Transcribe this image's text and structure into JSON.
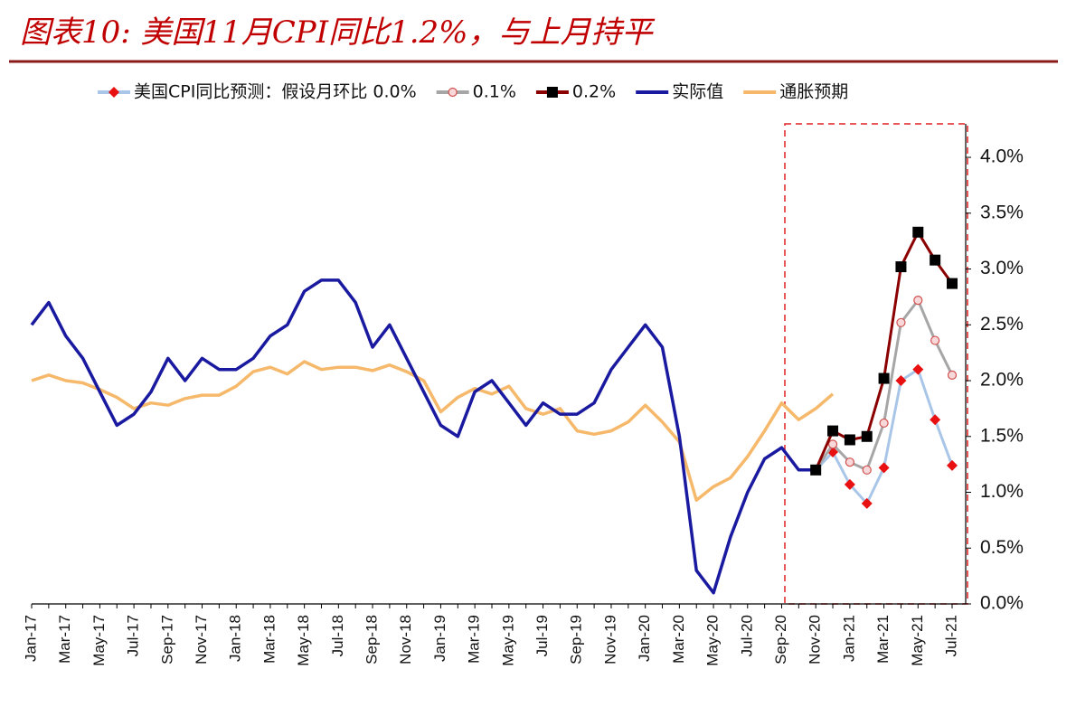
{
  "chart_data": {
    "type": "line",
    "title": "图表10: 美国11月CPI同比1.2%，与上月持平",
    "categories": [
      "Jan-17",
      null,
      "Mar-17",
      null,
      "May-17",
      null,
      "Jul-17",
      null,
      "Sep-17",
      null,
      "Nov-17",
      null,
      "Jan-18",
      null,
      "Mar-18",
      null,
      "May-18",
      null,
      "Jul-18",
      null,
      "Sep-18",
      null,
      "Nov-18",
      null,
      "Jan-19",
      null,
      "Mar-19",
      null,
      "May-19",
      null,
      "Jul-19",
      null,
      "Sep-19",
      null,
      "Nov-19",
      null,
      "Jan-20",
      null,
      "Mar-20",
      null,
      "May-20",
      null,
      "Jul-20",
      null,
      "Sep-20",
      null,
      "Nov-20",
      null,
      "Jan-21",
      null,
      "Mar-21",
      null,
      "May-21",
      null,
      "Jul-21"
    ],
    "series": [
      {
        "name": "美国CPI同比预测：假设月环比 0.0%",
        "color": "#a9c6e8",
        "marker": "diamond",
        "marker_color": "#e81010",
        "values": [
          null,
          null,
          null,
          null,
          null,
          null,
          null,
          null,
          null,
          null,
          null,
          null,
          null,
          null,
          null,
          null,
          null,
          null,
          null,
          null,
          null,
          null,
          null,
          null,
          null,
          null,
          null,
          null,
          null,
          null,
          null,
          null,
          null,
          null,
          null,
          null,
          null,
          null,
          null,
          null,
          null,
          null,
          null,
          null,
          null,
          null,
          1.2,
          1.36,
          1.07,
          0.9,
          1.22,
          2.0,
          2.1,
          1.65,
          1.24
        ]
      },
      {
        "name": "0.1%",
        "color": "#a6a6a6",
        "marker": "circle",
        "marker_color": "#e8a0a0",
        "values": [
          null,
          null,
          null,
          null,
          null,
          null,
          null,
          null,
          null,
          null,
          null,
          null,
          null,
          null,
          null,
          null,
          null,
          null,
          null,
          null,
          null,
          null,
          null,
          null,
          null,
          null,
          null,
          null,
          null,
          null,
          null,
          null,
          null,
          null,
          null,
          null,
          null,
          null,
          null,
          null,
          null,
          null,
          null,
          null,
          null,
          null,
          1.2,
          1.43,
          1.27,
          1.2,
          1.62,
          2.52,
          2.72,
          2.36,
          2.05
        ]
      },
      {
        "name": "0.2%",
        "color": "#8b0000",
        "marker": "square",
        "marker_color": "#000000",
        "values": [
          null,
          null,
          null,
          null,
          null,
          null,
          null,
          null,
          null,
          null,
          null,
          null,
          null,
          null,
          null,
          null,
          null,
          null,
          null,
          null,
          null,
          null,
          null,
          null,
          null,
          null,
          null,
          null,
          null,
          null,
          null,
          null,
          null,
          null,
          null,
          null,
          null,
          null,
          null,
          null,
          null,
          null,
          null,
          null,
          null,
          null,
          1.2,
          1.55,
          1.47,
          1.5,
          2.02,
          3.02,
          3.33,
          3.08,
          2.87
        ]
      },
      {
        "name": "实际值",
        "color": "#1a1aa0",
        "values": [
          2.5,
          2.7,
          2.4,
          2.2,
          1.9,
          1.6,
          1.7,
          1.9,
          2.2,
          2.0,
          2.2,
          2.1,
          2.1,
          2.2,
          2.4,
          2.5,
          2.8,
          2.9,
          2.9,
          2.7,
          2.3,
          2.5,
          2.2,
          1.9,
          1.6,
          1.5,
          1.9,
          2.0,
          1.8,
          1.6,
          1.8,
          1.7,
          1.7,
          1.8,
          2.1,
          2.3,
          2.5,
          2.3,
          1.5,
          0.3,
          0.1,
          0.6,
          1.0,
          1.3,
          1.4,
          1.2,
          1.2,
          null,
          null,
          null,
          null,
          null,
          null,
          null,
          null
        ]
      },
      {
        "name": "通胀预期",
        "color": "#f6b96b",
        "values": [
          2.0,
          2.05,
          2.0,
          1.98,
          1.92,
          1.85,
          1.75,
          1.8,
          1.78,
          1.84,
          1.87,
          1.87,
          1.95,
          2.08,
          2.12,
          2.06,
          2.17,
          2.1,
          2.12,
          2.12,
          2.09,
          2.14,
          2.08,
          2.0,
          1.72,
          1.85,
          1.93,
          1.88,
          1.95,
          1.75,
          1.7,
          1.75,
          1.55,
          1.52,
          1.55,
          1.63,
          1.78,
          1.63,
          1.45,
          0.93,
          1.05,
          1.13,
          1.32,
          1.55,
          1.8,
          1.65,
          1.75,
          1.88,
          null,
          null,
          null,
          null,
          null,
          null,
          null
        ]
      }
    ],
    "ylim": [
      0,
      4.3
    ],
    "yticks": [
      {
        "value": 0,
        "label": "0.0%"
      },
      {
        "value": 0.5,
        "label": "0.5%"
      },
      {
        "value": 1,
        "label": "1.0%"
      },
      {
        "value": 1.5,
        "label": "1.5%"
      },
      {
        "value": 2,
        "label": "2.0%"
      },
      {
        "value": 2.5,
        "label": "2.5%"
      },
      {
        "value": 3,
        "label": "3.0%"
      },
      {
        "value": 3.5,
        "label": "3.5%"
      },
      {
        "value": 4,
        "label": "4.0%"
      }
    ],
    "legend": "top"
  }
}
